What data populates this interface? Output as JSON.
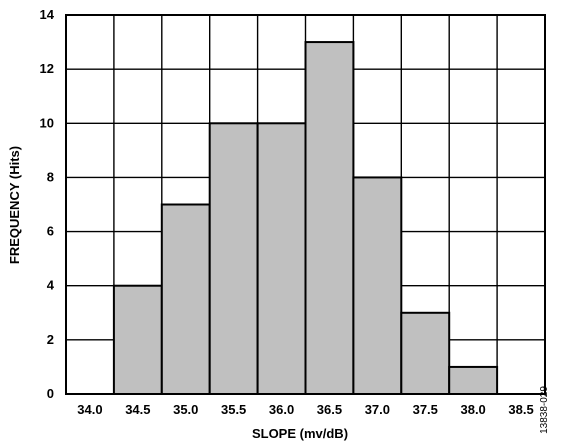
{
  "chart_data": {
    "type": "bar",
    "title": "",
    "xlabel": "SLOPE (mv/dB)",
    "ylabel": "FREQUENCY (Hits)",
    "x_tick_labels": [
      "34.0",
      "34.5",
      "35.0",
      "35.5",
      "36.0",
      "36.5",
      "37.0",
      "37.5",
      "38.0",
      "38.5"
    ],
    "y_tick_labels": [
      "0",
      "2",
      "4",
      "6",
      "8",
      "10",
      "12",
      "14"
    ],
    "y_ticks": [
      0,
      2,
      4,
      6,
      8,
      10,
      12,
      14
    ],
    "categories": [
      "34.5",
      "35.0",
      "35.5",
      "36.0",
      "36.5",
      "37.0",
      "37.5",
      "38.0"
    ],
    "values": [
      4,
      7,
      10,
      10,
      13,
      8,
      3,
      1
    ],
    "xlim": [
      34.0,
      38.5
    ],
    "ylim": [
      0,
      14
    ],
    "grid": true,
    "bar_color": "#c0c0c0",
    "figure_id": "13838-029"
  }
}
